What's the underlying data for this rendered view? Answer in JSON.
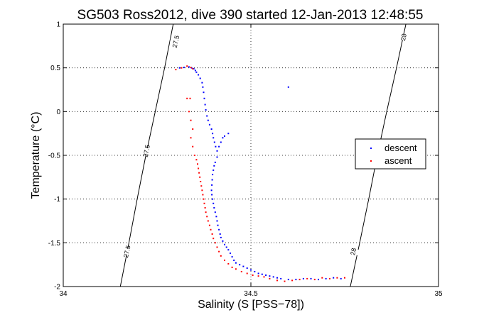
{
  "chart_data": {
    "type": "scatter",
    "title": "SG503 Ross2012, dive 390 started 12-Jan-2013 12:48:55",
    "xlabel": "Salinity (S [PSS−78])",
    "ylabel": "Temperature (°C)",
    "xlim": [
      34,
      35
    ],
    "ylim": [
      -2,
      1
    ],
    "x_ticks": [
      {
        "value": 34,
        "label": "34"
      },
      {
        "value": 34.5,
        "label": "34.5"
      },
      {
        "value": 35,
        "label": "35"
      }
    ],
    "y_ticks": [
      {
        "value": 1,
        "label": "1"
      },
      {
        "value": 0.5,
        "label": "0.5"
      },
      {
        "value": 0,
        "label": "0"
      },
      {
        "value": -0.5,
        "label": "-0.5"
      },
      {
        "value": -1,
        "label": "-1"
      },
      {
        "value": -1.5,
        "label": "-1.5"
      },
      {
        "value": -2,
        "label": "-2"
      }
    ],
    "grid": true,
    "legend_position": "right",
    "isopycnals": [
      {
        "label": "27.5",
        "points": [
          [
            34.152,
            -2.0
          ],
          [
            34.175,
            -1.5
          ],
          [
            34.197,
            -1.0
          ],
          [
            34.22,
            -0.5
          ],
          [
            34.245,
            0.0
          ],
          [
            34.27,
            0.5
          ],
          [
            34.293,
            1.0
          ]
        ],
        "label_positions": [
          [
            34.17,
            -1.6
          ],
          [
            34.222,
            -0.45
          ],
          [
            34.3,
            0.8
          ]
        ]
      },
      {
        "label": "28",
        "points": [
          [
            34.765,
            -2.0
          ],
          [
            34.79,
            -1.5
          ],
          [
            34.814,
            -1.0
          ],
          [
            34.837,
            -0.5
          ],
          [
            34.862,
            0.0
          ],
          [
            34.888,
            0.5
          ],
          [
            34.913,
            1.0
          ]
        ],
        "label_positions": [
          [
            34.773,
            -1.6
          ],
          [
            34.907,
            0.85
          ]
        ]
      }
    ],
    "series": [
      {
        "name": "descent",
        "color": "#0000ff",
        "points": [
          [
            34.31,
            0.5
          ],
          [
            34.322,
            0.505
          ],
          [
            34.335,
            0.51
          ],
          [
            34.342,
            0.5
          ],
          [
            34.348,
            0.49
          ],
          [
            34.352,
            0.47
          ],
          [
            34.355,
            0.45
          ],
          [
            34.36,
            0.42
          ],
          [
            34.365,
            0.38
          ],
          [
            34.37,
            0.33
          ],
          [
            34.372,
            0.28
          ],
          [
            34.374,
            0.22
          ],
          [
            34.376,
            0.15
          ],
          [
            34.378,
            0.08
          ],
          [
            34.38,
            0.02
          ],
          [
            34.383,
            -0.05
          ],
          [
            34.386,
            -0.1
          ],
          [
            34.39,
            -0.15
          ],
          [
            34.395,
            -0.2
          ],
          [
            34.398,
            -0.25
          ],
          [
            34.4,
            -0.3
          ],
          [
            34.403,
            -0.35
          ],
          [
            34.406,
            -0.4
          ],
          [
            34.41,
            -0.45
          ],
          [
            34.415,
            -0.4
          ],
          [
            34.42,
            -0.35
          ],
          [
            34.425,
            -0.3
          ],
          [
            34.43,
            -0.28
          ],
          [
            34.44,
            -0.25
          ],
          [
            34.41,
            -0.52
          ],
          [
            34.405,
            -0.58
          ],
          [
            34.402,
            -0.62
          ],
          [
            34.4,
            -0.67
          ],
          [
            34.398,
            -0.72
          ],
          [
            34.397,
            -0.78
          ],
          [
            34.396,
            -0.84
          ],
          [
            34.395,
            -0.9
          ],
          [
            34.396,
            -0.95
          ],
          [
            34.398,
            -1.0
          ],
          [
            34.4,
            -1.05
          ],
          [
            34.402,
            -1.1
          ],
          [
            34.405,
            -1.15
          ],
          [
            34.408,
            -1.2
          ],
          [
            34.41,
            -1.25
          ],
          [
            34.412,
            -1.3
          ],
          [
            34.415,
            -1.35
          ],
          [
            34.418,
            -1.4
          ],
          [
            34.42,
            -1.44
          ],
          [
            34.425,
            -1.48
          ],
          [
            34.43,
            -1.52
          ],
          [
            34.435,
            -1.55
          ],
          [
            34.44,
            -1.58
          ],
          [
            34.445,
            -1.62
          ],
          [
            34.45,
            -1.66
          ],
          [
            34.455,
            -1.7
          ],
          [
            34.46,
            -1.73
          ],
          [
            34.47,
            -1.75
          ],
          [
            34.48,
            -1.77
          ],
          [
            34.49,
            -1.79
          ],
          [
            34.5,
            -1.81
          ],
          [
            34.51,
            -1.83
          ],
          [
            34.52,
            -1.85
          ],
          [
            34.53,
            -1.86
          ],
          [
            34.54,
            -1.87
          ],
          [
            34.55,
            -1.88
          ],
          [
            34.56,
            -1.89
          ],
          [
            34.57,
            -1.9
          ],
          [
            34.58,
            -1.91
          ],
          [
            34.6,
            -1.92
          ],
          [
            34.62,
            -1.92
          ],
          [
            34.64,
            -1.91
          ],
          [
            34.66,
            -1.91
          ],
          [
            34.68,
            -1.92
          ],
          [
            34.7,
            -1.91
          ],
          [
            34.72,
            -1.9
          ],
          [
            34.74,
            -1.91
          ],
          [
            34.6,
            0.28
          ]
        ]
      },
      {
        "name": "ascent",
        "color": "#ff0000",
        "points": [
          [
            34.3,
            0.48
          ],
          [
            34.315,
            0.5
          ],
          [
            34.33,
            0.52
          ],
          [
            34.34,
            0.505
          ],
          [
            34.345,
            0.49
          ],
          [
            34.338,
            0.15
          ],
          [
            34.33,
            0.15
          ],
          [
            34.335,
            0.0
          ],
          [
            34.34,
            -0.1
          ],
          [
            34.345,
            -0.2
          ],
          [
            34.34,
            -0.3
          ],
          [
            34.345,
            -0.4
          ],
          [
            34.35,
            -0.5
          ],
          [
            34.355,
            -0.55
          ],
          [
            34.358,
            -0.6
          ],
          [
            34.36,
            -0.65
          ],
          [
            34.362,
            -0.7
          ],
          [
            34.364,
            -0.75
          ],
          [
            34.366,
            -0.8
          ],
          [
            34.368,
            -0.85
          ],
          [
            34.37,
            -0.9
          ],
          [
            34.372,
            -0.95
          ],
          [
            34.374,
            -1.0
          ],
          [
            34.376,
            -1.05
          ],
          [
            34.378,
            -1.1
          ],
          [
            34.38,
            -1.15
          ],
          [
            34.383,
            -1.2
          ],
          [
            34.386,
            -1.25
          ],
          [
            34.39,
            -1.3
          ],
          [
            34.393,
            -1.35
          ],
          [
            34.397,
            -1.4
          ],
          [
            34.4,
            -1.45
          ],
          [
            34.405,
            -1.5
          ],
          [
            34.41,
            -1.55
          ],
          [
            34.415,
            -1.6
          ],
          [
            34.42,
            -1.65
          ],
          [
            34.43,
            -1.7
          ],
          [
            34.44,
            -1.74
          ],
          [
            34.45,
            -1.78
          ],
          [
            34.46,
            -1.8
          ],
          [
            34.475,
            -1.83
          ],
          [
            34.49,
            -1.85
          ],
          [
            34.505,
            -1.87
          ],
          [
            34.52,
            -1.88
          ],
          [
            34.535,
            -1.89
          ],
          [
            34.55,
            -1.91
          ],
          [
            34.57,
            -1.93
          ],
          [
            34.59,
            -1.94
          ],
          [
            34.61,
            -1.93
          ],
          [
            34.63,
            -1.92
          ],
          [
            34.65,
            -1.91
          ],
          [
            34.67,
            -1.92
          ],
          [
            34.69,
            -1.9
          ],
          [
            34.71,
            -1.91
          ],
          [
            34.73,
            -1.9
          ],
          [
            34.75,
            -1.9
          ]
        ]
      }
    ]
  }
}
